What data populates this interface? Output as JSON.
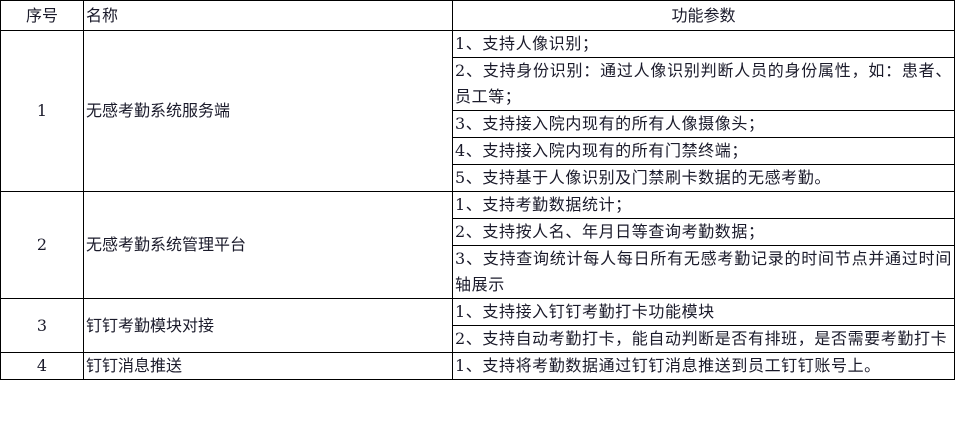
{
  "headers": [
    "序号",
    "名称",
    "功能参数"
  ],
  "rows": [
    {
      "no": "1",
      "name": "无感考勤系统服务端",
      "params": [
        "1、支持人像识别；",
        "2、支持身份识别：通过人像识别判断人员的身份属性，如：患者、员工等；",
        "3、支持接入院内现有的所有人像摄像头；",
        "4、支持接入院内现有的所有门禁终端；",
        "5、支持基于人像识别及门禁刷卡数据的无感考勤。"
      ]
    },
    {
      "no": "2",
      "name": "无感考勤系统管理平台",
      "params": [
        "1、支持考勤数据统计；",
        "2、支持按人名、年月日等查询考勤数据；",
        "3、支持查询统计每人每日所有无感考勤记录的时间节点并通过时间轴展示"
      ]
    },
    {
      "no": "3",
      "name": "钉钉考勤模块对接",
      "params": [
        "1、支持接入钉钉考勤打卡功能模块",
        "2、支持自动考勤打卡，能自动判断是否有排班，是否需要考勤打卡"
      ]
    },
    {
      "no": "4",
      "name": "钉钉消息推送",
      "params": [
        "1、支持将考勤数据通过钉钉消息推送到员工钉钉账号上。"
      ]
    }
  ]
}
